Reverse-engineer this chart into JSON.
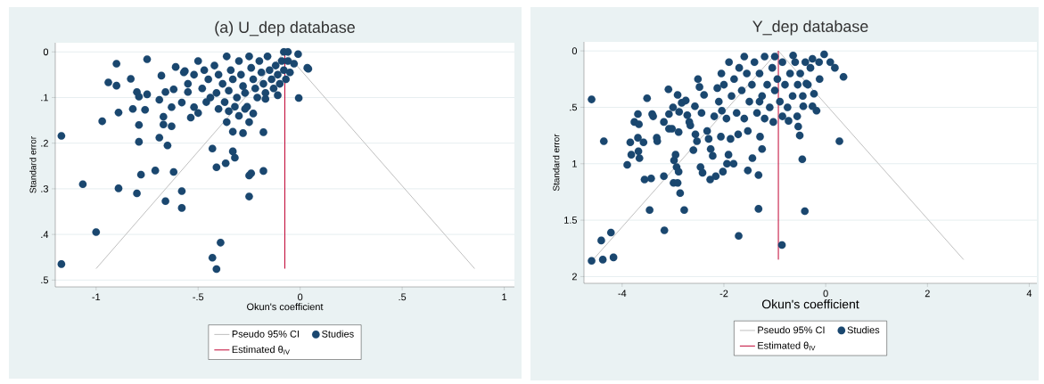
{
  "chart_data": [
    {
      "type": "scatter",
      "title": "(a) U_dep database",
      "xlabel": "Okun's coefficient",
      "ylabel": "Standard error",
      "xlim": [
        -1.2,
        1.05
      ],
      "ylim": [
        0.515,
        -0.02
      ],
      "xticks": [
        -1,
        {
          "value": -0.5,
          "label": "-.5"
        },
        0,
        {
          "value": 0.5,
          "label": ".5"
        },
        1
      ],
      "yticks": [
        0,
        {
          "value": 0.1,
          "label": ".1"
        },
        {
          "value": 0.2,
          "label": ".2"
        },
        {
          "value": 0.3,
          "label": ".3"
        },
        {
          "value": 0.4,
          "label": ".4"
        },
        {
          "value": 0.5,
          "label": ".5"
        }
      ],
      "grid": "y",
      "legend": "bottom",
      "series": [
        {
          "name": "Pseudo 95% CI",
          "type": "line",
          "color": "#c0c0c0",
          "x": [
            -1.0,
            -0.075,
            0.855
          ],
          "values": [
            0.475,
            0,
            0.475
          ]
        },
        {
          "name": "Studies",
          "marker": "circle",
          "color": "#1a476f",
          "x": [
            -1.17,
            -1.17,
            -1.065,
            -1.0,
            -0.97,
            -0.94,
            -0.9,
            -0.9,
            -0.89,
            -0.89,
            -0.83,
            -0.82,
            -0.8,
            -0.79,
            -0.79,
            -0.79,
            -0.8,
            -0.78,
            -0.76,
            -0.75,
            -0.75,
            -0.71,
            -0.69,
            -0.69,
            -0.68,
            -0.67,
            -0.67,
            -0.66,
            -0.66,
            -0.65,
            -0.63,
            -0.63,
            -0.62,
            -0.62,
            -0.61,
            -0.58,
            -0.58,
            -0.58,
            -0.565,
            -0.55,
            -0.536,
            -0.52,
            -0.5,
            -0.43,
            -0.43,
            -0.39,
            -0.41,
            -0.41,
            -0.365,
            -0.36,
            -0.33,
            -0.32,
            -0.33,
            -0.28,
            -0.25,
            -0.24,
            -0.25,
            -0.25,
            -0.23,
            -0.18,
            -0.18,
            -0.007,
            0.04,
            0.035,
            -0.01,
            -0.11,
            -0.17,
            -0.03,
            -0.08,
            -0.06,
            -0.5,
            -0.47,
            -0.45,
            -0.48,
            -0.44,
            -0.42,
            -0.4,
            -0.38,
            -0.41,
            -0.37,
            -0.36,
            -0.34,
            -0.33,
            -0.35,
            -0.31,
            -0.3,
            -0.29,
            -0.28,
            -0.27,
            -0.26,
            -0.25,
            -0.24,
            -0.23,
            -0.22,
            -0.21,
            -0.2,
            -0.19,
            -0.18,
            -0.17,
            -0.16,
            -0.15,
            -0.14,
            -0.13,
            -0.12,
            -0.11,
            -0.1,
            -0.09,
            -0.08,
            -0.07,
            -0.06,
            -0.05,
            -0.4,
            -0.35,
            -0.3,
            -0.46,
            -0.52,
            -0.55,
            -0.57,
            -0.32,
            -0.27
          ],
          "values": [
            0.184,
            0.465,
            0.29,
            0.395,
            0.152,
            0.067,
            0.026,
            0.074,
            0.133,
            0.299,
            0.059,
            0.125,
            0.088,
            0.098,
            0.16,
            0.197,
            0.31,
            0.269,
            0.127,
            0.093,
            0.016,
            0.26,
            0.188,
            0.105,
            0.052,
            0.159,
            0.142,
            0.088,
            0.327,
            0.205,
            0.121,
            0.163,
            0.082,
            0.263,
            0.033,
            0.305,
            0.342,
            0.111,
            0.042,
            0.088,
            0.144,
            0.121,
            0.134,
            0.212,
            0.451,
            0.418,
            0.476,
            0.253,
            0.244,
            0.154,
            0.218,
            0.232,
            0.175,
            0.178,
            0.271,
            0.266,
            0.317,
            0.154,
            0.135,
            0.261,
            0.176,
            0.101,
            0.037,
            0.035,
            0.005,
            0.095,
            0.103,
            0.026,
            0.0,
            0.0,
            0.02,
            0.04,
            0.06,
            0.08,
            0.1,
            0.03,
            0.05,
            0.07,
            0.09,
            0.11,
            0.01,
            0.04,
            0.06,
            0.085,
            0.1,
            0.02,
            0.05,
            0.075,
            0.09,
            0.12,
            0.01,
            0.035,
            0.06,
            0.08,
            0.1,
            0.02,
            0.045,
            0.07,
            0.09,
            0.01,
            0.04,
            0.06,
            0.08,
            0.03,
            0.05,
            0.07,
            0.02,
            0.04,
            0.06,
            0.02,
            0.045,
            0.125,
            0.13,
            0.14,
            0.11,
            0.05,
            0.07,
            0.045,
            0.12,
            0.125
          ]
        },
        {
          "name": "Estimated θ$_{IV}$",
          "type": "line",
          "color": "#c10534",
          "x": [
            -0.075,
            -0.075
          ],
          "values": [
            0,
            0.475
          ]
        }
      ]
    },
    {
      "type": "scatter",
      "title": "Y_dep database",
      "xlabel": "Okun's coefficient",
      "ylabel": "Standard error",
      "xlim": [
        -4.75,
        4.15
      ],
      "ylim": [
        2.06,
        -0.08
      ],
      "xticks": [
        -4,
        -2,
        0,
        2,
        4
      ],
      "yticks": [
        0,
        {
          "value": 0.5,
          "label": ".5"
        },
        1,
        1.5,
        2
      ],
      "grid": "y",
      "legend": "bottom",
      "series": [
        {
          "name": "Pseudo 95% CI",
          "type": "line",
          "color": "#c0c0c0",
          "x": [
            -4.57,
            -0.93,
            2.71
          ],
          "values": [
            1.85,
            0,
            1.85
          ]
        },
        {
          "name": "Studies",
          "marker": "circle",
          "color": "#1a476f",
          "x": [
            -4.6,
            -4.6,
            -4.41,
            -4.38,
            -4.22,
            -4.17,
            -4.36,
            -3.9,
            -3.84,
            -3.82,
            -3.76,
            -3.69,
            -3.69,
            -3.67,
            -3.68,
            -3.66,
            -3.58,
            -3.56,
            -3.51,
            -3.46,
            -3.43,
            -3.41,
            -3.39,
            -3.32,
            -3.31,
            -3.18,
            -3.18,
            -3.17,
            -3.09,
            -3.08,
            -3.08,
            -3.0,
            -3.02,
            -2.99,
            -2.98,
            -2.95,
            -2.93,
            -2.91,
            -2.89,
            -2.91,
            -2.89,
            -2.88,
            -2.86,
            -2.83,
            -2.78,
            -2.75,
            -2.72,
            -2.68,
            -2.66,
            -2.6,
            -2.57,
            -2.56,
            -2.53,
            -2.51,
            -2.48,
            -2.46,
            -2.44,
            -2.42,
            -2.39,
            -2.33,
            -2.3,
            -2.27,
            -2.26,
            -2.22,
            -2.19,
            -2.16,
            -2.13,
            -2.06,
            -2.04,
            -2.02,
            -1.94,
            -1.91,
            -1.87,
            -1.81,
            -1.71,
            -1.72,
            -1.53,
            -1.53,
            -1.44,
            -1.32,
            -1.32,
            -1.29,
            -1.25,
            -0.86,
            -1.03,
            -0.73,
            0.27,
            -0.46,
            -0.41,
            0.35,
            -0.03,
            0.09,
            0.18,
            -0.13,
            -0.12,
            -0.18,
            -0.23,
            -0.26,
            -0.38,
            -0.44,
            -0.51,
            -0.54,
            -0.56,
            -0.26,
            -0.64,
            -1.9,
            -1.8,
            -1.85,
            -1.75,
            -1.7,
            -1.65,
            -1.6,
            -1.55,
            -1.5,
            -1.45,
            -1.4,
            -1.35,
            -1.3,
            -1.25,
            -1.2,
            -1.15,
            -1.1,
            -1.05,
            -1.0,
            -0.95,
            -0.9,
            -0.85,
            -0.8,
            -0.75,
            -0.7,
            -0.65,
            -0.6,
            -0.55,
            -0.5,
            -0.45,
            -0.4,
            -0.35,
            -0.3,
            -1.95,
            -2.0,
            -2.05,
            -2.1,
            -1.6,
            -1.2,
            -0.85,
            -1.0,
            -1.3
          ],
          "values": [
            0.43,
            1.86,
            1.68,
            1.85,
            1.61,
            1.83,
            0.8,
            1.01,
            0.81,
            0.92,
            0.63,
            0.56,
            0.77,
            0.65,
            0.89,
            0.95,
            0.81,
            1.14,
            0.42,
            1.41,
            1.13,
            0.56,
            0.58,
            0.77,
            0.8,
            0.63,
            1.11,
            1.59,
            0.34,
            0.56,
            0.69,
            0.5,
            0.69,
            1.17,
            0.97,
            0.92,
            1.03,
            0.39,
            1.07,
            1.17,
            0.72,
            0.54,
            1.26,
            0.46,
            1.41,
            0.44,
            0.57,
            0.63,
            0.66,
            0.88,
            0.49,
            0.74,
            0.8,
            0.25,
            0.32,
            1.03,
            0.55,
            1.08,
            0.39,
            0.71,
            0.78,
            1.14,
            0.87,
            0.93,
            0.58,
            1.11,
            0.33,
            0.76,
            0.53,
            1.07,
            1.0,
            0.92,
            0.78,
            1.0,
            1.64,
            0.74,
            1.06,
            0.71,
            0.95,
            1.1,
            1.4,
            0.76,
            0.87,
            1.72,
            0.63,
            0.62,
            0.8,
            0.96,
            1.42,
            0.23,
            0.03,
            0.1,
            0.15,
            0.1,
            0.25,
            0.53,
            0.38,
            0.49,
            0.29,
            0.49,
            0.75,
            0.67,
            0.58,
            0.07,
            0.04,
            0.1,
            0.25,
            0.4,
            0.55,
            0.15,
            0.35,
            0.05,
            0.2,
            0.45,
            0.3,
            0.1,
            0.55,
            0.2,
            0.4,
            0.05,
            0.3,
            0.5,
            0.15,
            0.35,
            0.25,
            0.45,
            0.1,
            0.3,
            0.5,
            0.2,
            0.4,
            0.1,
            0.3,
            0.2,
            0.4,
            0.1,
            0.3,
            0.15,
            0.6,
            0.3,
            0.2,
            0.45,
            0.6,
            0.6,
            0.58,
            0.05,
            0.45
          ]
        },
        {
          "name": "Estimated θ$_{IV}$",
          "type": "line",
          "color": "#c10534",
          "x": [
            -0.93,
            -0.93
          ],
          "values": [
            0,
            1.85
          ]
        }
      ]
    }
  ]
}
